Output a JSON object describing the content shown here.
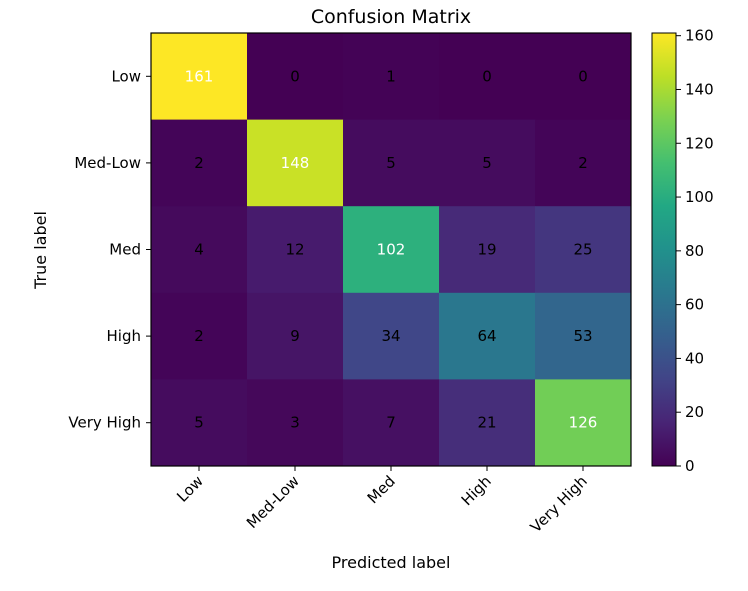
{
  "chart_data": {
    "type": "heatmap",
    "title": "Confusion Matrix",
    "xlabel": "Predicted label",
    "ylabel": "True label",
    "x_categories": [
      "Low",
      "Med-Low",
      "Med",
      "High",
      "Very High"
    ],
    "y_categories": [
      "Low",
      "Med-Low",
      "Med",
      "High",
      "Very High"
    ],
    "values": [
      [
        161,
        0,
        1,
        0,
        0
      ],
      [
        2,
        148,
        5,
        5,
        2
      ],
      [
        4,
        12,
        102,
        19,
        25
      ],
      [
        2,
        9,
        34,
        64,
        53
      ],
      [
        5,
        3,
        7,
        21,
        126
      ]
    ],
    "colormap": "viridis",
    "vmin": 0,
    "vmax": 161,
    "colorbar_ticks": [
      0,
      20,
      40,
      60,
      80,
      100,
      120,
      140,
      160
    ],
    "text_color_dark": "#000000",
    "text_color_light": "#ffffff"
  }
}
